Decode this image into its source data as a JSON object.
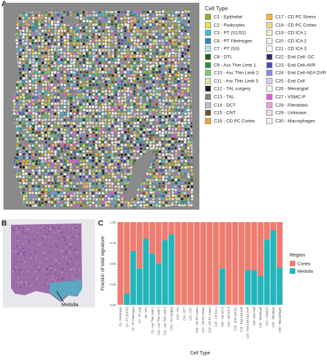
{
  "panel_labels": {
    "a": "A",
    "b": "B",
    "c": "C"
  },
  "legend": {
    "title": "Cell Type",
    "items": [
      {
        "label": "C1 - Epithelial",
        "color": "#9aa82e"
      },
      {
        "label": "C2 - Podocytes",
        "color": "#e7e14f"
      },
      {
        "label": "C3 - PT (S1/S2)",
        "color": "#27c3d6"
      },
      {
        "label": "C6 - PT Fibrinogen",
        "color": "#2a86b5"
      },
      {
        "label": "C7 - PT (S3)",
        "color": "#b7e4ee"
      },
      {
        "label": "C8 - DTL",
        "color": "#1b5e20"
      },
      {
        "label": "C9 - Asc Thin Limb 1",
        "color": "#2e8b3d"
      },
      {
        "label": "C10 - Asc Thin Limb 2",
        "color": "#7ed06a"
      },
      {
        "label": "C11 - Asc Thin Limb 3",
        "color": "#c8eeb0"
      },
      {
        "label": "C12 - TAL surgery",
        "color": "#1e1e1e"
      },
      {
        "label": "C13 - TAL",
        "color": "#808080"
      },
      {
        "label": "C14 - DCT",
        "color": "#c0c0c0"
      },
      {
        "label": "C15 - CNT",
        "color": "#7a4a1e"
      },
      {
        "label": "C16 - CD PC Cortex",
        "color": "#f0a830"
      },
      {
        "label": "C17 - CD PC Stress",
        "color": "#f7b733"
      },
      {
        "label": "C18 - CD PC Cortex",
        "color": "#f5d78e"
      },
      {
        "label": "C19 - CD ICA 1",
        "color": "#f4ecc6"
      },
      {
        "label": "C20 - CD ICA 2",
        "color": "#f7f4e6"
      },
      {
        "label": "C21 - CD ICA 3",
        "color": "#ffffff"
      },
      {
        "label": "C22 - End Cell- GC",
        "color": "#2c2c6a"
      },
      {
        "label": "C23 - End Cell-AVR",
        "color": "#4b4bb0"
      },
      {
        "label": "C24 - End Cell-AEA DVR",
        "color": "#8a8ae0"
      },
      {
        "label": "C25 - End Cell",
        "color": "#d0d0f4"
      },
      {
        "label": "C26 - Mesangial",
        "color": "#ffffff"
      },
      {
        "label": "C27 - VSMC-P",
        "color": "#e35ad6"
      },
      {
        "label": "C28 - Fibroblast",
        "color": "#e8a0d8"
      },
      {
        "label": "C29 - Unknown",
        "color": "#f2d8ee"
      },
      {
        "label": "C30 - Macrophages",
        "color": "#fbeef8"
      }
    ]
  },
  "panel_b": {
    "annotation": "Medulla"
  },
  "chart_data": {
    "type": "bar",
    "stacked": true,
    "ylabel": "Fraction of total signature",
    "xlabel": "Cell Type",
    "ylim": [
      0,
      1
    ],
    "yticks": [
      "0.00",
      "0.25",
      "0.50",
      "0.75",
      "1.00"
    ],
    "legend_title": "Region",
    "legend_position": "right",
    "grid": true,
    "categories": [
      "C2 - Podocytes",
      "C3 - PT (S1/S2)",
      "C6 - PT Fibrinogen",
      "C7 - PT (S3)",
      "C8 - DTL",
      "C9 - Asc Thin Limb 1",
      "C10 - Asc Thin Limb 2",
      "C11 - Asc Thin Limb 3",
      "C12 - TAL surgery",
      "C13 - TAL",
      "C14 - DCT",
      "C15 - CNT",
      "C16 - CD PC Cortex",
      "C17 - CD PC Stress",
      "C18 - CD PC Cortex",
      "C19 - CD ICA 1",
      "C20 - CD ICA 2",
      "C21 - CD ICA 3",
      "C22 - End Cell GC",
      "C23 - End Cell AVR",
      "C24 - End Cell AEA DVR",
      "C25 - End Cell",
      "C26 - Mesangial",
      "C27 - VSMC/P",
      "C28 - Fibroblast",
      "C30 - Macrophages"
    ],
    "series": [
      {
        "name": "Cortex",
        "color": "#f07b6f",
        "values": [
          1.0,
          0.86,
          0.35,
          0.56,
          0.2,
          0.38,
          0.5,
          0.22,
          0.15,
          1.0,
          1.0,
          1.0,
          1.0,
          1.0,
          1.0,
          1.0,
          0.56,
          1.0,
          1.0,
          1.0,
          0.58,
          0.58,
          0.65,
          0.21,
          0.1,
          0.55
        ]
      },
      {
        "name": "Medulla",
        "color": "#22b6ba",
        "values": [
          0.0,
          0.14,
          0.65,
          0.44,
          0.8,
          0.62,
          0.5,
          0.78,
          0.85,
          0.0,
          0.0,
          0.0,
          0.0,
          0.0,
          0.0,
          0.0,
          0.44,
          0.0,
          0.0,
          0.0,
          0.42,
          0.42,
          0.35,
          0.79,
          0.9,
          0.45
        ]
      }
    ]
  }
}
